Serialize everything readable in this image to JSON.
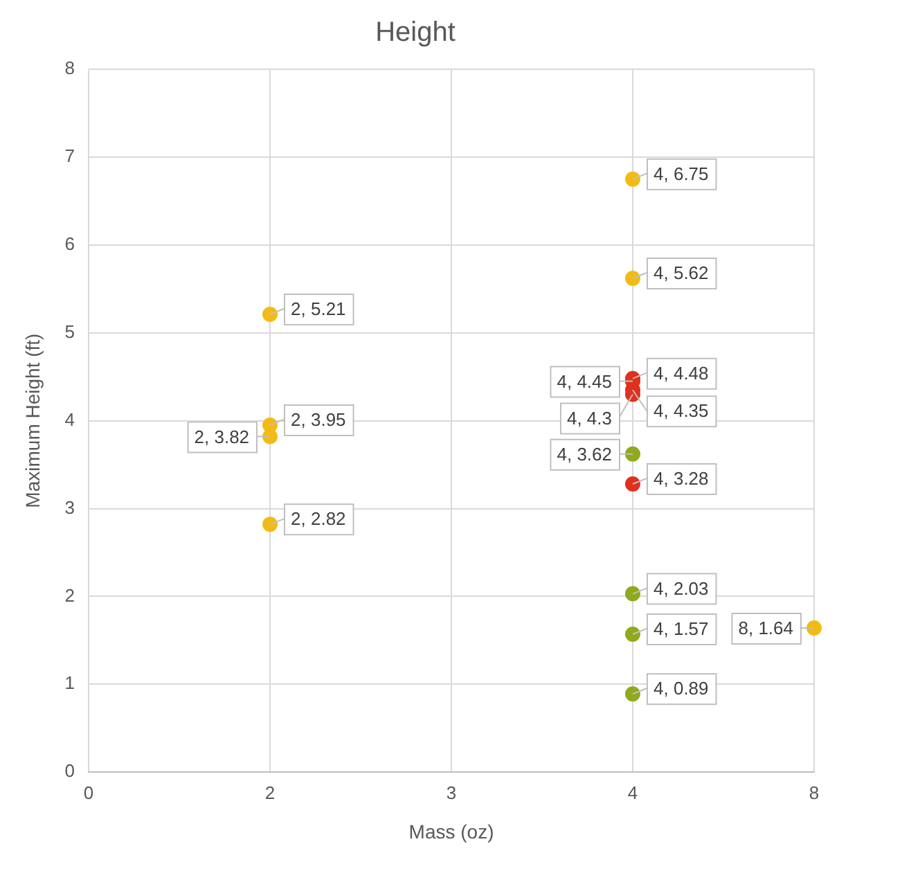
{
  "chart_data": {
    "type": "scatter",
    "title": "Height",
    "xlabel": "Mass (oz)",
    "ylabel": "Maximum Height (ft)",
    "categories": [
      "0",
      "2",
      "3",
      "4",
      "8"
    ],
    "ylim": [
      0,
      8
    ],
    "yticks": [
      0,
      1,
      2,
      3,
      4,
      5,
      6,
      7,
      8
    ],
    "grid": true,
    "legend": false,
    "marker": "circle",
    "series": [
      {
        "color": "#f2bb14",
        "x": [
          "2",
          "2",
          "2",
          "2",
          "4",
          "4",
          "8"
        ],
        "values": [
          5.21,
          3.95,
          3.82,
          2.82,
          6.75,
          5.62,
          1.64
        ],
        "value_labels": [
          "2, 5.21",
          "2, 3.95",
          "2, 3.82",
          "2, 2.82",
          "4, 6.75",
          "4, 5.62",
          "8, 1.64"
        ]
      },
      {
        "color": "#e0301e",
        "x": [
          "4",
          "4",
          "4",
          "4",
          "4"
        ],
        "values": [
          4.48,
          4.45,
          4.35,
          4.3,
          3.28
        ],
        "value_labels": [
          "4, 4.48",
          "4, 4.45",
          "4, 4.35",
          "4, 4.3",
          "4, 3.28"
        ]
      },
      {
        "color": "#8faa1e",
        "x": [
          "4",
          "4",
          "4",
          "4"
        ],
        "values": [
          3.62,
          2.03,
          1.57,
          0.89
        ],
        "value_labels": [
          "4, 3.62",
          "4, 2.03",
          "4, 1.57",
          "4, 0.89"
        ]
      }
    ]
  }
}
